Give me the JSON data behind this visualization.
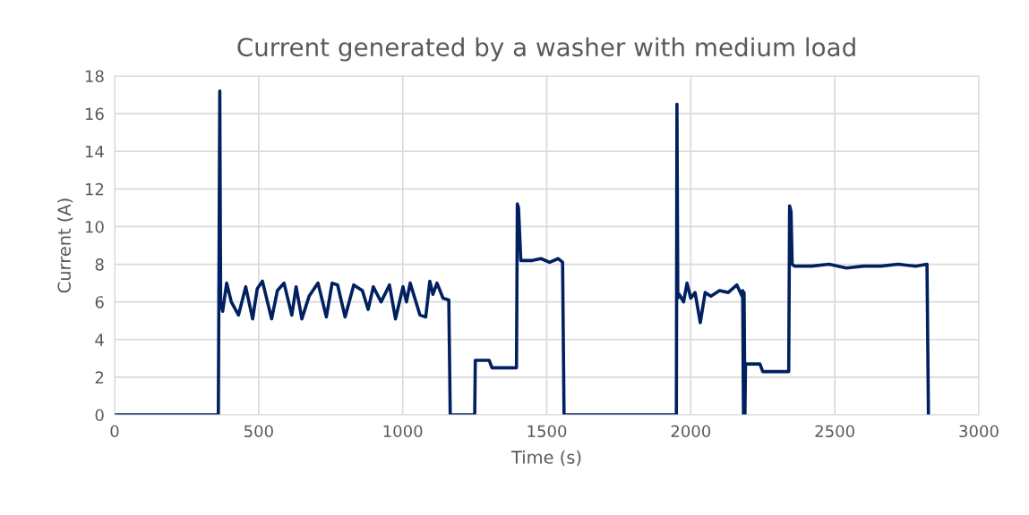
{
  "chart_data": {
    "type": "line",
    "title": "Current generated by a washer with medium load",
    "xlabel": "Time (s)",
    "ylabel": "Current (A)",
    "xlim": [
      0,
      3000
    ],
    "xticks": [
      0,
      500,
      1000,
      1500,
      2000,
      2500,
      3000
    ],
    "ylim": [
      0,
      18
    ],
    "yticks": [
      0,
      2,
      4,
      6,
      8,
      10,
      12,
      14,
      16,
      18
    ],
    "grid": true,
    "marker": "none",
    "line_style": "solid",
    "series": [
      {
        "color": "#002060",
        "x": [
          0,
          360,
          365,
          368,
          375,
          389,
          405,
          430,
          455,
          479,
          495,
          513,
          545,
          565,
          588,
          615,
          630,
          650,
          675,
          706,
          735,
          755,
          774,
          800,
          830,
          860,
          880,
          898,
          925,
          954,
          975,
          1001,
          1013,
          1026,
          1060,
          1080,
          1094,
          1105,
          1119,
          1140,
          1160,
          1165,
          1250,
          1252,
          1300,
          1310,
          1395,
          1398,
          1402,
          1410,
          1420,
          1450,
          1480,
          1510,
          1540,
          1555,
          1560,
          1950,
          1952,
          1955,
          1960,
          1975,
          1987,
          2000,
          2015,
          2033,
          2050,
          2070,
          2100,
          2130,
          2160,
          2178,
          2180,
          2183,
          2185,
          2188,
          2190,
          2240,
          2250,
          2340,
          2343,
          2348,
          2352,
          2360,
          2420,
          2480,
          2540,
          2600,
          2660,
          2720,
          2780,
          2820,
          2825
        ],
        "values": [
          0,
          0,
          17.2,
          6.0,
          5.5,
          7.0,
          6.0,
          5.3,
          6.8,
          5.1,
          6.7,
          7.1,
          5.1,
          6.6,
          7.0,
          5.3,
          6.8,
          5.1,
          6.3,
          7.0,
          5.2,
          7.0,
          6.9,
          5.2,
          6.9,
          6.6,
          5.6,
          6.8,
          6.0,
          6.9,
          5.1,
          6.8,
          6.0,
          7.0,
          5.3,
          5.2,
          7.1,
          6.4,
          7.0,
          6.2,
          6.1,
          0,
          0,
          2.9,
          2.9,
          2.5,
          2.5,
          11.2,
          11.0,
          8.2,
          8.2,
          8.2,
          8.3,
          8.1,
          8.3,
          8.1,
          0,
          0,
          16.5,
          6.2,
          6.4,
          6.0,
          7.0,
          6.2,
          6.5,
          4.9,
          6.5,
          6.3,
          6.6,
          6.5,
          6.9,
          6.3,
          6.6,
          0,
          6.5,
          0,
          2.7,
          2.7,
          2.3,
          2.3,
          11.1,
          10.8,
          8.0,
          7.9,
          7.9,
          8.0,
          7.8,
          7.9,
          7.9,
          8.0,
          7.9,
          8.0,
          0
        ]
      }
    ]
  }
}
